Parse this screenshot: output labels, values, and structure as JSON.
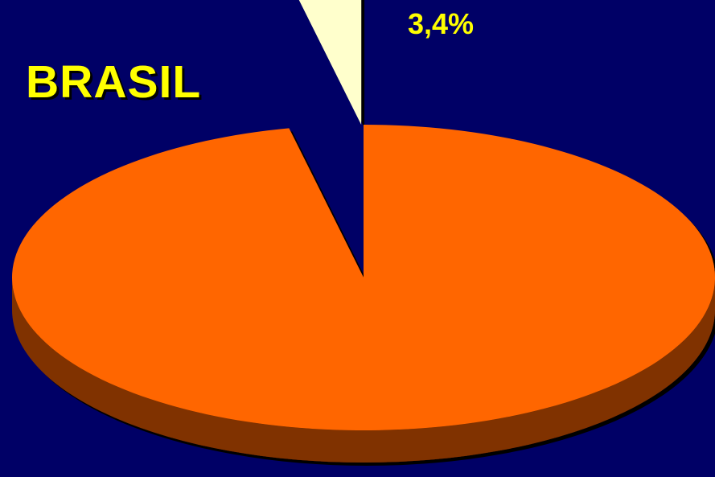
{
  "chart_data": {
    "type": "pie",
    "title": "BRASIL",
    "slices": [
      {
        "label": "",
        "value": 96.6,
        "data_label": "",
        "exploded": false
      },
      {
        "label": "",
        "value": 3.4,
        "data_label": "3,4%",
        "exploded": true
      }
    ],
    "three_d": true,
    "legend": "none",
    "colors": {
      "background": "#000066",
      "major_top": "#ff6600",
      "major_side": "#803300",
      "minor_top": "#ffffcc",
      "minor_side": "#808066",
      "label": "#ffff00",
      "title": "#ffff00"
    }
  }
}
